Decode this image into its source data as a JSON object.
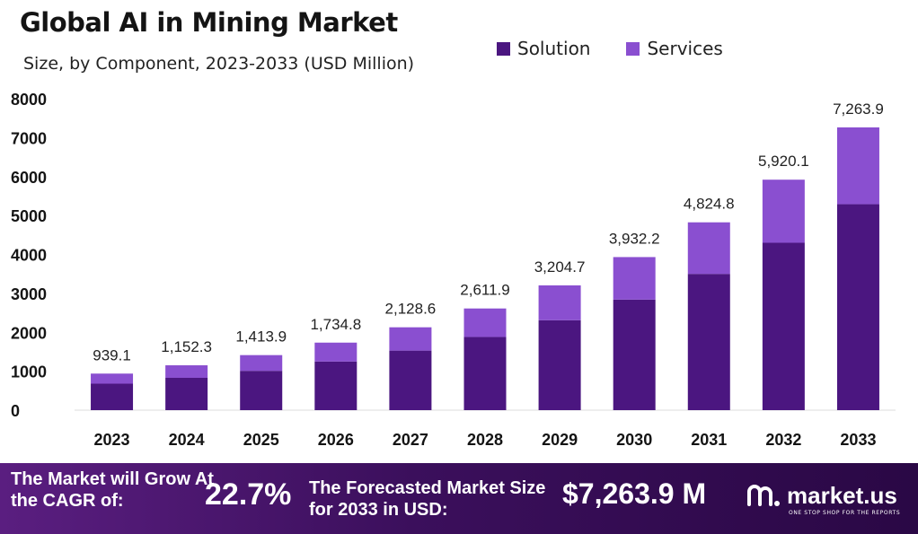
{
  "header": {
    "title": "Global AI in Mining Market",
    "subtitle": "Size, by Component, 2023-2033 (USD Million)"
  },
  "legend": {
    "solution_label": "Solution",
    "services_label": "Services"
  },
  "colors": {
    "solution": "#4b1680",
    "services": "#8a4fd0",
    "grid": "#dcdcdc"
  },
  "chart_data": {
    "type": "bar",
    "stacked": true,
    "categories": [
      "2023",
      "2024",
      "2025",
      "2026",
      "2027",
      "2028",
      "2029",
      "2030",
      "2031",
      "2032",
      "2033"
    ],
    "series": [
      {
        "name": "Solution",
        "values": [
          680,
          830,
          1010,
          1250,
          1530,
          1880,
          2310,
          2840,
          3500,
          4300,
          5290
        ]
      },
      {
        "name": "Services",
        "values": [
          259.1,
          322.3,
          403.9,
          484.8,
          598.6,
          731.9,
          894.7,
          1092.2,
          1324.8,
          1620.1,
          1973.9
        ]
      }
    ],
    "totals": [
      939.1,
      1152.3,
      1413.9,
      1734.8,
      2128.6,
      2611.9,
      3204.7,
      3932.2,
      4824.8,
      5920.1,
      7263.9
    ],
    "total_labels": [
      "939.1",
      "1,152.3",
      "1,413.9",
      "1,734.8",
      "2,128.6",
      "2,611.9",
      "3,204.7",
      "3,932.2",
      "4,824.8",
      "5,920.1",
      "7,263.9"
    ],
    "y_ticks": [
      0,
      1000,
      2000,
      3000,
      4000,
      5000,
      6000,
      7000,
      8000
    ],
    "ylim": [
      0,
      8000
    ],
    "title": "Global AI in Mining Market",
    "subtitle": "Size, by Component, 2023-2033 (USD Million)",
    "legend_position": "top-right",
    "grid": false
  },
  "banner": {
    "cagr_label": "The Market will Grow At the CAGR of:",
    "cagr_value": "22.7%",
    "forecast_label": "The Forecasted Market Size for 2033 in USD:",
    "forecast_value": "$7,263.9 M",
    "brand_name": "market.us",
    "brand_tagline": "ONE STOP SHOP FOR THE REPORTS",
    "brand_icon": "market-us-logo-icon"
  }
}
